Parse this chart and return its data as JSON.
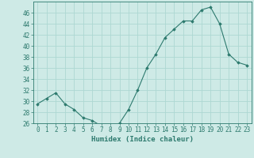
{
  "x": [
    0,
    1,
    2,
    3,
    4,
    5,
    6,
    7,
    8,
    9,
    10,
    11,
    12,
    13,
    14,
    15,
    16,
    17,
    18,
    19,
    20,
    21,
    22,
    23
  ],
  "y": [
    29.5,
    30.5,
    31.5,
    29.5,
    28.5,
    27.0,
    26.5,
    25.5,
    25.5,
    26.0,
    28.5,
    32.0,
    36.0,
    38.5,
    41.5,
    43.0,
    44.5,
    44.5,
    46.5,
    47.0,
    44.0,
    38.5,
    37.0,
    36.5
  ],
  "line_color": "#2d7a6e",
  "marker_color": "#2d7a6e",
  "bg_color": "#ceeae6",
  "grid_color": "#add8d2",
  "xlabel": "Humidex (Indice chaleur)",
  "ylim": [
    26,
    48
  ],
  "xlim": [
    -0.5,
    23.5
  ],
  "yticks": [
    26,
    28,
    30,
    32,
    34,
    36,
    38,
    40,
    42,
    44,
    46
  ],
  "xticks": [
    0,
    1,
    2,
    3,
    4,
    5,
    6,
    7,
    8,
    9,
    10,
    11,
    12,
    13,
    14,
    15,
    16,
    17,
    18,
    19,
    20,
    21,
    22,
    23
  ],
  "axis_fontsize": 6.0,
  "tick_fontsize": 5.5,
  "xlabel_fontsize": 6.5
}
